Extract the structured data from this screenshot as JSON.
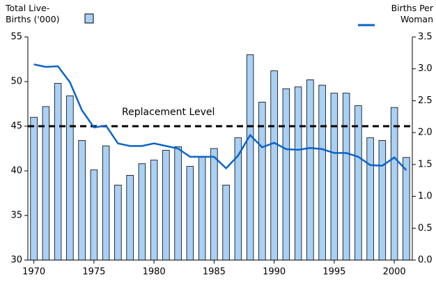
{
  "chart_data": {
    "type": "bar_line",
    "x": [
      1970,
      1971,
      1972,
      1973,
      1974,
      1975,
      1976,
      1977,
      1978,
      1979,
      1980,
      1981,
      1982,
      1983,
      1984,
      1985,
      1986,
      1987,
      1988,
      1989,
      1990,
      1991,
      1992,
      1993,
      1994,
      1995,
      1996,
      1997,
      1998,
      1999,
      2000,
      2001
    ],
    "xlim": [
      1969.5,
      2001.5
    ],
    "xticks": [
      1970,
      1975,
      1980,
      1985,
      1990,
      1995,
      2000
    ],
    "ylim": [
      30,
      55
    ],
    "yticks": [
      30,
      35,
      40,
      45,
      50,
      55
    ],
    "y2lim": [
      0,
      3.5
    ],
    "y2ticks": [
      {
        "value": 0,
        "label": "0.0"
      },
      0.5,
      {
        "value": 1,
        "label": "1.0"
      },
      1.5,
      {
        "value": 2,
        "label": "2.0"
      },
      2.5,
      {
        "value": 3,
        "label": "3.0"
      },
      3.5
    ],
    "series": [
      {
        "name": "Total Live-Births ('000)",
        "type": "bar",
        "color": "#a9d0f5",
        "values": [
          46.0,
          47.2,
          49.8,
          48.4,
          43.4,
          40.1,
          42.8,
          38.4,
          39.5,
          40.8,
          41.2,
          42.3,
          42.7,
          40.5,
          41.6,
          42.5,
          38.4,
          43.7,
          53.0,
          47.7,
          51.2,
          49.2,
          49.4,
          50.2,
          49.6,
          48.7,
          48.7,
          47.3,
          43.7,
          43.4,
          47.1,
          41.5
        ]
      },
      {
        "name": "Births Per Woman",
        "type": "line",
        "axis": "y2",
        "color": "#0a64c8",
        "values": [
          3.07,
          3.03,
          3.04,
          2.79,
          2.35,
          2.08,
          2.11,
          1.83,
          1.79,
          1.79,
          1.83,
          1.79,
          1.75,
          1.62,
          1.62,
          1.62,
          1.44,
          1.64,
          1.96,
          1.77,
          1.84,
          1.74,
          1.73,
          1.76,
          1.74,
          1.68,
          1.68,
          1.62,
          1.49,
          1.48,
          1.61,
          1.41
        ]
      }
    ],
    "annotations": [
      {
        "text": "Replacement Level",
        "value": 2.1,
        "axis": "y2"
      }
    ]
  }
}
